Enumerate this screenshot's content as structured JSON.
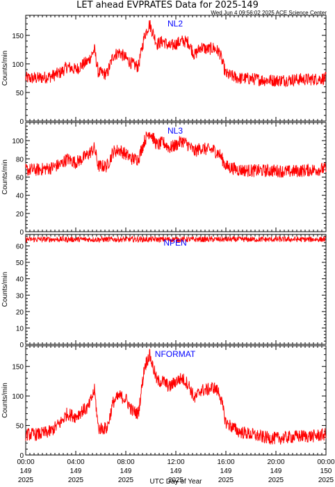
{
  "title": "LET ahead EVPRATES Data for 2025-149",
  "timestamp": "Wed Jun  4 09:56:02 2025 ACE Science Center",
  "xlabel": "UTC Day of Year",
  "x_ticks": [
    {
      "time": "00:00",
      "day": "149",
      "year": "2025"
    },
    {
      "time": "04:00",
      "day": "149",
      "year": "2025"
    },
    {
      "time": "08:00",
      "day": "149",
      "year": "2025"
    },
    {
      "time": "12:00",
      "day": "149",
      "year": "2025"
    },
    {
      "time": "16:00",
      "day": "149",
      "year": "2025"
    },
    {
      "time": "20:00",
      "day": "149",
      "year": "2025"
    },
    {
      "time": "00:00",
      "day": "150",
      "year": "2025"
    }
  ],
  "colors": {
    "series": "#ff0000",
    "panel_label": "#0000ff",
    "axes": "#000000"
  },
  "chart_data": [
    {
      "type": "line",
      "panel_label": "NL2",
      "ylabel": "Counts/min",
      "ylim": [
        0,
        185
      ],
      "yticks": [
        0,
        50,
        100,
        150
      ],
      "xlim_hours": [
        0,
        24
      ],
      "points": [
        {
          "x": 0.0,
          "y": 75
        },
        {
          "x": 1.0,
          "y": 75
        },
        {
          "x": 2.0,
          "y": 78
        },
        {
          "x": 2.8,
          "y": 85
        },
        {
          "x": 3.3,
          "y": 95
        },
        {
          "x": 4.0,
          "y": 90
        },
        {
          "x": 4.5,
          "y": 98
        },
        {
          "x": 5.0,
          "y": 105
        },
        {
          "x": 5.5,
          "y": 125
        },
        {
          "x": 5.8,
          "y": 85
        },
        {
          "x": 6.5,
          "y": 82
        },
        {
          "x": 7.0,
          "y": 115
        },
        {
          "x": 7.5,
          "y": 120
        },
        {
          "x": 8.0,
          "y": 110
        },
        {
          "x": 8.5,
          "y": 100
        },
        {
          "x": 9.0,
          "y": 95
        },
        {
          "x": 9.5,
          "y": 150
        },
        {
          "x": 9.9,
          "y": 170
        },
        {
          "x": 10.5,
          "y": 135
        },
        {
          "x": 11.0,
          "y": 140
        },
        {
          "x": 11.5,
          "y": 130
        },
        {
          "x": 12.0,
          "y": 135
        },
        {
          "x": 12.5,
          "y": 140
        },
        {
          "x": 13.0,
          "y": 138
        },
        {
          "x": 13.5,
          "y": 115
        },
        {
          "x": 14.0,
          "y": 130
        },
        {
          "x": 14.5,
          "y": 125
        },
        {
          "x": 15.0,
          "y": 128
        },
        {
          "x": 15.5,
          "y": 120
        },
        {
          "x": 16.0,
          "y": 82
        },
        {
          "x": 17.0,
          "y": 75
        },
        {
          "x": 18.0,
          "y": 74
        },
        {
          "x": 19.0,
          "y": 72
        },
        {
          "x": 20.0,
          "y": 71
        },
        {
          "x": 21.0,
          "y": 72
        },
        {
          "x": 22.0,
          "y": 73
        },
        {
          "x": 23.0,
          "y": 73
        },
        {
          "x": 24.0,
          "y": 75
        }
      ]
    },
    {
      "type": "line",
      "panel_label": "NL3",
      "ylabel": "Counts/min",
      "ylim": [
        0,
        120
      ],
      "yticks": [
        0,
        20,
        40,
        60,
        80,
        100
      ],
      "xlim_hours": [
        0,
        24
      ],
      "points": [
        {
          "x": 0.0,
          "y": 68
        },
        {
          "x": 1.0,
          "y": 68
        },
        {
          "x": 2.0,
          "y": 70
        },
        {
          "x": 2.8,
          "y": 74
        },
        {
          "x": 3.3,
          "y": 80
        },
        {
          "x": 4.0,
          "y": 76
        },
        {
          "x": 4.5,
          "y": 80
        },
        {
          "x": 5.0,
          "y": 85
        },
        {
          "x": 5.5,
          "y": 92
        },
        {
          "x": 5.8,
          "y": 72
        },
        {
          "x": 6.5,
          "y": 72
        },
        {
          "x": 7.0,
          "y": 88
        },
        {
          "x": 7.5,
          "y": 90
        },
        {
          "x": 8.0,
          "y": 85
        },
        {
          "x": 8.5,
          "y": 80
        },
        {
          "x": 9.0,
          "y": 80
        },
        {
          "x": 9.5,
          "y": 100
        },
        {
          "x": 9.9,
          "y": 110
        },
        {
          "x": 10.5,
          "y": 95
        },
        {
          "x": 11.0,
          "y": 98
        },
        {
          "x": 11.5,
          "y": 92
        },
        {
          "x": 12.0,
          "y": 95
        },
        {
          "x": 12.5,
          "y": 100
        },
        {
          "x": 13.0,
          "y": 95
        },
        {
          "x": 13.5,
          "y": 88
        },
        {
          "x": 14.0,
          "y": 92
        },
        {
          "x": 14.5,
          "y": 90
        },
        {
          "x": 15.0,
          "y": 90
        },
        {
          "x": 15.5,
          "y": 85
        },
        {
          "x": 16.0,
          "y": 72
        },
        {
          "x": 17.0,
          "y": 68
        },
        {
          "x": 18.0,
          "y": 67
        },
        {
          "x": 19.0,
          "y": 67
        },
        {
          "x": 20.0,
          "y": 67
        },
        {
          "x": 21.0,
          "y": 66
        },
        {
          "x": 22.0,
          "y": 67
        },
        {
          "x": 23.0,
          "y": 68
        },
        {
          "x": 24.0,
          "y": 69
        }
      ]
    },
    {
      "type": "line",
      "panel_label": "NPEN",
      "ylabel": "Counts/min",
      "ylim": [
        0,
        67
      ],
      "yticks": [
        0,
        10,
        20,
        30,
        40,
        50,
        60
      ],
      "xlim_hours": [
        0,
        24
      ],
      "points": [
        {
          "x": 0.0,
          "y": 64
        },
        {
          "x": 4.0,
          "y": 64
        },
        {
          "x": 8.0,
          "y": 64
        },
        {
          "x": 12.0,
          "y": 64
        },
        {
          "x": 16.0,
          "y": 64
        },
        {
          "x": 20.0,
          "y": 64
        },
        {
          "x": 24.0,
          "y": 64
        }
      ]
    },
    {
      "type": "line",
      "panel_label": "NFORMAT",
      "ylabel": "Counts/min",
      "ylim": [
        0,
        185
      ],
      "yticks": [
        0,
        50,
        100,
        150
      ],
      "xlim_hours": [
        0,
        24
      ],
      "points": [
        {
          "x": 0.0,
          "y": 35
        },
        {
          "x": 1.0,
          "y": 35
        },
        {
          "x": 2.0,
          "y": 40
        },
        {
          "x": 2.8,
          "y": 55
        },
        {
          "x": 3.3,
          "y": 70
        },
        {
          "x": 4.0,
          "y": 65
        },
        {
          "x": 4.5,
          "y": 75
        },
        {
          "x": 5.0,
          "y": 80
        },
        {
          "x": 5.5,
          "y": 110
        },
        {
          "x": 5.8,
          "y": 45
        },
        {
          "x": 6.5,
          "y": 45
        },
        {
          "x": 7.0,
          "y": 90
        },
        {
          "x": 7.5,
          "y": 100
        },
        {
          "x": 8.0,
          "y": 95
        },
        {
          "x": 8.5,
          "y": 75
        },
        {
          "x": 9.0,
          "y": 70
        },
        {
          "x": 9.5,
          "y": 150
        },
        {
          "x": 9.9,
          "y": 170
        },
        {
          "x": 10.5,
          "y": 125
        },
        {
          "x": 11.0,
          "y": 125
        },
        {
          "x": 11.5,
          "y": 115
        },
        {
          "x": 12.0,
          "y": 125
        },
        {
          "x": 12.5,
          "y": 130
        },
        {
          "x": 13.0,
          "y": 120
        },
        {
          "x": 13.5,
          "y": 95
        },
        {
          "x": 14.0,
          "y": 110
        },
        {
          "x": 14.5,
          "y": 110
        },
        {
          "x": 15.0,
          "y": 115
        },
        {
          "x": 15.5,
          "y": 105
        },
        {
          "x": 16.0,
          "y": 55
        },
        {
          "x": 17.0,
          "y": 40
        },
        {
          "x": 18.0,
          "y": 35
        },
        {
          "x": 19.0,
          "y": 30
        },
        {
          "x": 20.0,
          "y": 28
        },
        {
          "x": 21.0,
          "y": 30
        },
        {
          "x": 22.0,
          "y": 32
        },
        {
          "x": 23.0,
          "y": 32
        },
        {
          "x": 24.0,
          "y": 35
        }
      ]
    }
  ]
}
